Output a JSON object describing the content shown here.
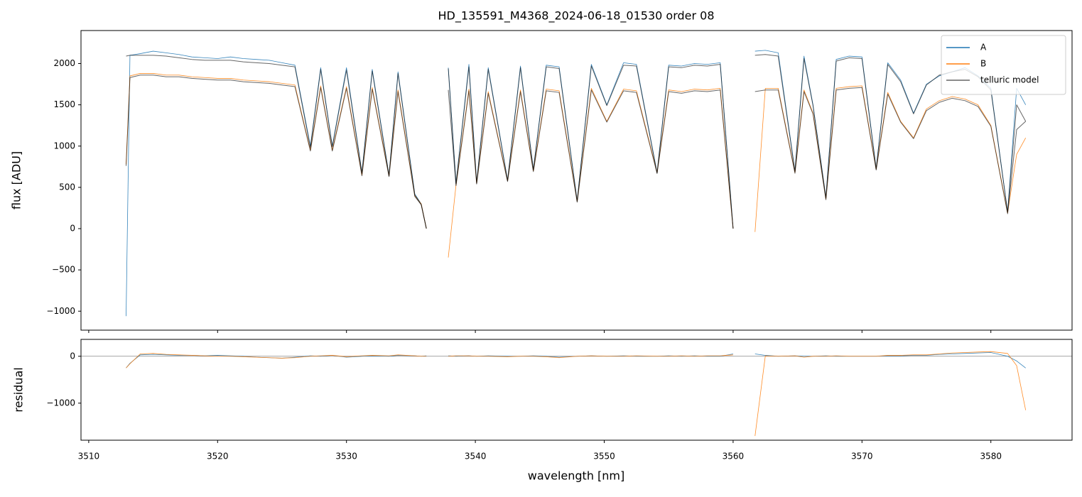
{
  "chart_data": [
    {
      "type": "line",
      "title": "HD_135591_M4368_2024-06-18_01530  order 08",
      "ylabel": "flux [ADU]",
      "x": [
        3512.9,
        3513.2,
        3514,
        3515,
        3516,
        3517,
        3518,
        3519,
        3520,
        3521,
        3522,
        3523,
        3524,
        3525,
        3526,
        3527.2,
        3528,
        3528.9,
        3530,
        3531.2,
        3532,
        3533.3,
        3534,
        3535.3,
        3535.8,
        3536.2,
        3537,
        3537.9,
        3538.5,
        3539.5,
        3540.1,
        3541,
        3542.5,
        3543.5,
        3544.5,
        3545.5,
        3546.5,
        3547.9,
        3549,
        3550.2,
        3551.5,
        3552.5,
        3554.1,
        3555,
        3556,
        3557,
        3558,
        3559,
        3560,
        3561,
        3561.7,
        3562.5,
        3563.5,
        3564.8,
        3565.5,
        3566.2,
        3567.2,
        3568,
        3569,
        3570,
        3571.1,
        3572,
        3573,
        3574,
        3575,
        3576,
        3577,
        3578,
        3579,
        3580,
        3581.3,
        3582,
        3582.7
      ],
      "series": [
        {
          "name": "A",
          "color": "#1f77b4",
          "values": [
            -1060,
            2100,
            2120,
            2150,
            2130,
            2110,
            2080,
            2070,
            2060,
            2080,
            2060,
            2050,
            2040,
            2010,
            1980,
            1000,
            1950,
            1000,
            1950,
            680,
            1930,
            650,
            1900,
            420,
            300,
            0,
            null,
            1950,
            550,
            1990,
            560,
            1950,
            590,
            1970,
            720,
            1980,
            1960,
            340,
            1990,
            1500,
            2010,
            1990,
            680,
            1980,
            1970,
            2000,
            1990,
            2010,
            0,
            null,
            2150,
            2160,
            2130,
            700,
            2090,
            1500,
            380,
            2050,
            2090,
            2080,
            730,
            2010,
            1800,
            1400,
            1750,
            1850,
            1900,
            1950,
            1850,
            1700,
            200,
            1700,
            1500
          ]
        },
        {
          "name": "B",
          "color": "#ff7f0e",
          "values": [
            780,
            1850,
            1880,
            1880,
            1860,
            1860,
            1840,
            1830,
            1820,
            1820,
            1800,
            1790,
            1780,
            1760,
            1740,
            950,
            1730,
            950,
            1720,
            650,
            1710,
            640,
            1680,
            400,
            300,
            0,
            null,
            -350,
            530,
            1690,
            550,
            1660,
            580,
            1680,
            700,
            1690,
            1670,
            330,
            1700,
            1300,
            1690,
            1670,
            680,
            1680,
            1660,
            1690,
            1680,
            1700,
            0,
            null,
            -40,
            1700,
            1700,
            680,
            1680,
            1400,
            360,
            1700,
            1720,
            1730,
            720,
            1650,
            1300,
            1100,
            1450,
            1550,
            1600,
            1570,
            1500,
            1250,
            190,
            900,
            1100
          ]
        },
        {
          "name": "telluric model",
          "color": "#000000",
          "values": [
            2090,
            2100,
            2100,
            2100,
            2090,
            2070,
            2050,
            2040,
            2040,
            2040,
            2020,
            2010,
            2000,
            1980,
            1960,
            980,
            1930,
            990,
            1920,
            670,
            1910,
            640,
            1880,
            410,
            290,
            0,
            null,
            1940,
            540,
            1960,
            550,
            1930,
            580,
            1950,
            710,
            1960,
            1940,
            330,
            1970,
            1490,
            1980,
            1970,
            670,
            1960,
            1950,
            1980,
            1970,
            1990,
            0,
            null,
            2100,
            2110,
            2090,
            690,
            2060,
            1490,
            370,
            2030,
            2070,
            2060,
            720,
            1990,
            1780,
            1390,
            1740,
            1860,
            1900,
            1930,
            1840,
            1680,
            200,
            1500,
            1300
          ]
        },
        {
          "color": "#000000",
          "values": [
            760,
            1830,
            1860,
            1860,
            1840,
            1840,
            1820,
            1810,
            1800,
            1800,
            1780,
            1770,
            1760,
            1740,
            1720,
            940,
            1710,
            940,
            1700,
            640,
            1690,
            630,
            1660,
            390,
            290,
            0,
            null,
            1680,
            520,
            1670,
            540,
            1640,
            570,
            1660,
            690,
            1670,
            1650,
            320,
            1680,
            1290,
            1670,
            1650,
            670,
            1660,
            1640,
            1670,
            1660,
            1680,
            0,
            null,
            1660,
            1680,
            1680,
            670,
            1660,
            1390,
            350,
            1680,
            1700,
            1710,
            710,
            1630,
            1290,
            1090,
            1430,
            1530,
            1580,
            1550,
            1480,
            1240,
            180,
            1200,
            1300
          ]
        }
      ],
      "xlim": [
        3509.4,
        3586.3
      ],
      "xticks": [
        3510,
        3520,
        3530,
        3540,
        3550,
        3560,
        3570,
        3580
      ],
      "xtick_labels": false,
      "ylim": [
        -1230,
        2400
      ],
      "yticks": [
        {
          "value": -1000,
          "label": "−1000"
        },
        {
          "value": -500,
          "label": "−500"
        },
        0,
        500,
        1000,
        1500,
        2000
      ],
      "legend": "upper right"
    },
    {
      "type": "line",
      "ylabel": "residual",
      "xlabel": "wavelength [nm]",
      "x": [
        3512.9,
        3513.2,
        3514,
        3515,
        3516,
        3517,
        3518,
        3519,
        3520,
        3521,
        3522,
        3523,
        3524,
        3525,
        3526,
        3527.2,
        3528,
        3528.9,
        3530,
        3531.2,
        3532,
        3533.3,
        3534,
        3535.3,
        3535.8,
        3536.2,
        3537,
        3537.9,
        3538.5,
        3539.5,
        3540.1,
        3541,
        3542.5,
        3543.5,
        3544.5,
        3545.5,
        3546.5,
        3547.9,
        3549,
        3550.2,
        3551.5,
        3552.5,
        3554.1,
        3555,
        3556,
        3557,
        3558,
        3559,
        3560,
        3561,
        3561.7,
        3562.5,
        3563.5,
        3564.8,
        3565.5,
        3566.2,
        3567.2,
        3568,
        3569,
        3570,
        3571.1,
        3572,
        3573,
        3574,
        3575,
        3576,
        3577,
        3578,
        3579,
        3580,
        3581.3,
        3582,
        3582.7
      ],
      "series": [
        {
          "color": "#1f77b4",
          "values": [
            -250,
            -150,
            30,
            40,
            30,
            20,
            20,
            10,
            20,
            10,
            0,
            -20,
            -30,
            -40,
            -20,
            10,
            0,
            20,
            -20,
            0,
            10,
            0,
            20,
            10,
            0,
            10,
            null,
            10,
            0,
            10,
            0,
            10,
            0,
            0,
            10,
            0,
            -20,
            0,
            10,
            0,
            10,
            0,
            0,
            10,
            0,
            10,
            0,
            0,
            50,
            null,
            50,
            20,
            0,
            10,
            0,
            0,
            10,
            0,
            0,
            0,
            0,
            10,
            10,
            20,
            20,
            40,
            50,
            60,
            70,
            80,
            0,
            -100,
            -250
          ]
        },
        {
          "color": "#ff7f0e",
          "values": [
            -250,
            -160,
            50,
            60,
            40,
            30,
            20,
            10,
            0,
            0,
            -10,
            -20,
            -30,
            -40,
            -30,
            0,
            10,
            20,
            -10,
            10,
            20,
            10,
            30,
            10,
            0,
            0,
            null,
            0,
            10,
            10,
            0,
            0,
            -10,
            0,
            0,
            -10,
            -30,
            0,
            10,
            0,
            0,
            10,
            0,
            0,
            10,
            0,
            10,
            10,
            30,
            null,
            -1700,
            10,
            0,
            10,
            -20,
            0,
            0,
            10,
            0,
            0,
            0,
            20,
            20,
            30,
            30,
            50,
            70,
            80,
            90,
            100,
            60,
            -200,
            -1150
          ]
        }
      ],
      "hline": 0,
      "xlim": [
        3509.4,
        3586.3
      ],
      "xticks": [
        3510,
        3520,
        3530,
        3540,
        3550,
        3560,
        3570,
        3580
      ],
      "ylim": [
        -1790,
        360
      ],
      "yticks": [
        {
          "value": -1000,
          "label": "−1000"
        },
        0
      ]
    }
  ]
}
